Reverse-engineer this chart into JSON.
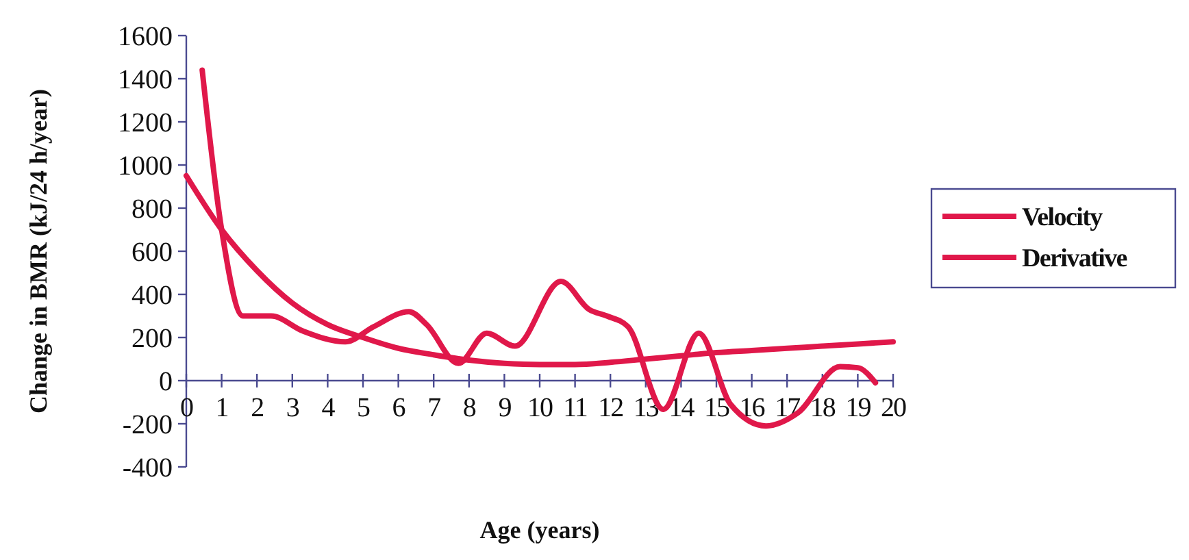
{
  "chart_data": {
    "type": "line",
    "xlabel": "Age (years)",
    "ylabel": "Change in BMR (kJ/24 h/year)",
    "xlim": [
      0,
      20
    ],
    "xticks": [
      0,
      1,
      2,
      3,
      4,
      5,
      6,
      7,
      8,
      9,
      10,
      11,
      12,
      13,
      14,
      15,
      16,
      17,
      18,
      19,
      20
    ],
    "ylim": [
      -400,
      1600
    ],
    "yticks": [
      -400,
      -200,
      0,
      200,
      400,
      600,
      800,
      1000,
      1200,
      1400,
      1600
    ],
    "grid": false,
    "legend": "right",
    "marker": "none",
    "line_style": "solid",
    "series": [
      {
        "name": "Velocity",
        "color": "#e0184a",
        "x": [
          0.45,
          1.0,
          1.6,
          2.4,
          3.3,
          4.5,
          5.3,
          6.3,
          6.8,
          7.7,
          8.5,
          9.3,
          10.6,
          11.4,
          11.9,
          12.5,
          13.5,
          14.5,
          15.4,
          16.4,
          17.3,
          18.5,
          19.0,
          19.5
        ],
        "values": [
          1440,
          700,
          300,
          300,
          230,
          180,
          250,
          320,
          260,
          80,
          220,
          160,
          460,
          330,
          300,
          250,
          -133,
          220,
          -110,
          -210,
          -150,
          65,
          60,
          -10
        ]
      },
      {
        "name": "Derivative",
        "color": "#e0184a",
        "x": [
          0,
          1,
          2,
          3,
          4,
          5,
          6,
          7,
          8,
          9,
          10,
          11,
          12,
          13,
          14,
          15,
          16,
          17,
          18,
          19,
          20
        ],
        "values": [
          950,
          700,
          510,
          360,
          260,
          200,
          150,
          120,
          95,
          80,
          75,
          75,
          85,
          100,
          115,
          130,
          140,
          150,
          160,
          170,
          180
        ]
      }
    ]
  }
}
